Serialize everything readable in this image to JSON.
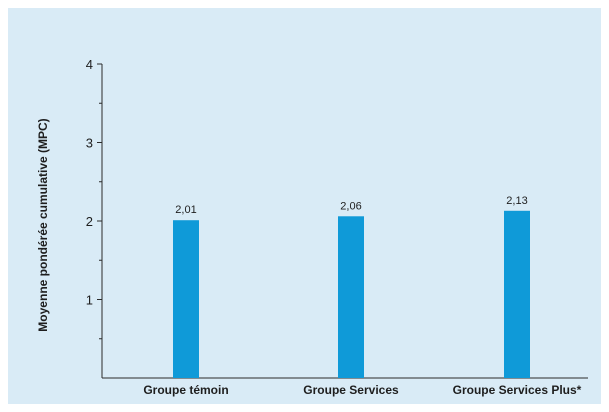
{
  "chart_data": {
    "type": "bar",
    "categories": [
      "Groupe témoin",
      "Groupe Services",
      "Groupe Services Plus*"
    ],
    "values": [
      2.01,
      2.06,
      2.13
    ],
    "data_labels": [
      "2,01",
      "2,06",
      "2,13"
    ],
    "ylabel": "Moyenne pondérée cumulative (MPC)",
    "xlabel": "",
    "ylim": [
      0,
      4
    ],
    "yticks": [
      1,
      2,
      3,
      4
    ],
    "ytick_labels": [
      "1",
      "2",
      "3",
      "4"
    ],
    "minor_ticks": [
      0.5,
      1.5,
      2.5,
      3.5
    ],
    "grid": false,
    "legend": "none"
  },
  "colors": {
    "background": "#d9ebf6",
    "bar": "#0f9ad8",
    "axis": "#2b2b2b",
    "text": "#1e1e1e",
    "border": "#ffffff"
  }
}
